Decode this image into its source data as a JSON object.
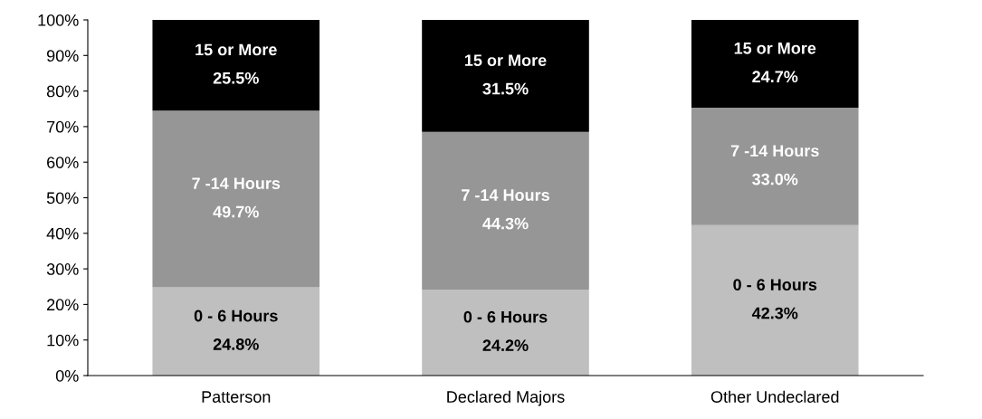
{
  "chart_data": {
    "type": "bar",
    "stacked": true,
    "categories": [
      "Patterson",
      "Declared Majors",
      "Other Undeclared"
    ],
    "series": [
      {
        "name": "0 - 6 Hours",
        "color": "#bfbfbf",
        "values": [
          24.8,
          24.2,
          42.3
        ],
        "value_labels": [
          "24.8%",
          "24.2%",
          "42.3%"
        ]
      },
      {
        "name": "7 -14 Hours",
        "color": "#969696",
        "values": [
          49.7,
          44.3,
          33.0
        ],
        "value_labels": [
          "49.7%",
          "44.3%",
          "33.0%"
        ]
      },
      {
        "name": "15 or More",
        "color": "#000000",
        "values": [
          25.5,
          31.5,
          24.7
        ],
        "value_labels": [
          "25.5%",
          "31.5%",
          "24.7%"
        ]
      }
    ],
    "ylim": [
      0,
      100
    ],
    "yticks": [
      {
        "value": 0,
        "label": "0%"
      },
      {
        "value": 10,
        "label": "10%"
      },
      {
        "value": 20,
        "label": "20%"
      },
      {
        "value": 30,
        "label": "30%"
      },
      {
        "value": 40,
        "label": "40%"
      },
      {
        "value": 50,
        "label": "50%"
      },
      {
        "value": 60,
        "label": "60%"
      },
      {
        "value": 70,
        "label": "70%"
      },
      {
        "value": 80,
        "label": "80%"
      },
      {
        "value": 90,
        "label": "90%"
      },
      {
        "value": 100,
        "label": "100%"
      }
    ],
    "grid": false,
    "legend": false
  }
}
